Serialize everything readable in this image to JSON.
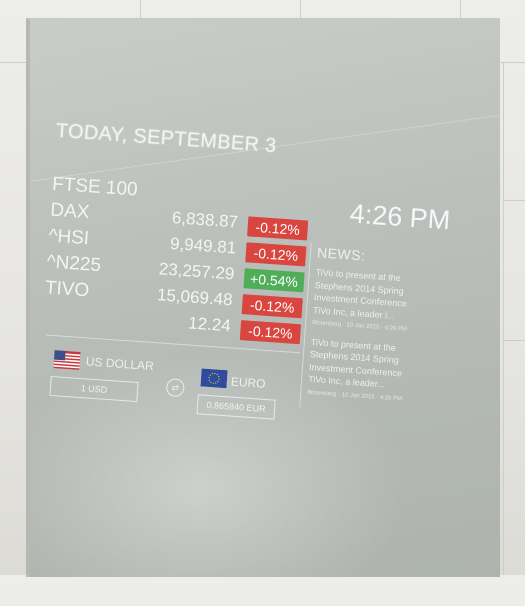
{
  "date": "TODAY, SEPTEMBER 3",
  "time": "4:26 PM",
  "stocks": [
    {
      "symbol": "FTSE 100",
      "price": "",
      "change": "",
      "direction": ""
    },
    {
      "symbol": "DAX",
      "price": "6,838.87",
      "change": "-0.12%",
      "direction": "down"
    },
    {
      "symbol": "^HSI",
      "price": "9,949.81",
      "change": "-0.12%",
      "direction": "down"
    },
    {
      "symbol": "^N225",
      "price": "23,257.29",
      "change": "+0.54%",
      "direction": "up"
    },
    {
      "symbol": "TIVO",
      "price": "15,069.48",
      "change": "-0.12%",
      "direction": "down"
    },
    {
      "symbol": "",
      "price": "12.24",
      "change": "-0.12%",
      "direction": "down"
    }
  ],
  "colors": {
    "down": "#d9463f",
    "up": "#4fae57"
  },
  "news": {
    "title": "NEWS:",
    "items": [
      {
        "text": "TiVo to present at the Stephens 2014 Spring Investment Conference TiVo Inc, a leader i...",
        "meta": "Bloomberg · 10 Jan 2015 · 4:26 PM"
      },
      {
        "text": "TiVo to present at the Stephens 2014 Spring Investment Conference TiVo Inc, a leader...",
        "meta": "Bloomberg · 10 Jan 2015 · 4:26 PM"
      }
    ]
  },
  "currency": {
    "from_label": "US DOLLAR",
    "from_value": "1 USD",
    "to_label": "EURO",
    "to_value": "0.865840 EUR",
    "swap_icon": "swap-icon"
  }
}
